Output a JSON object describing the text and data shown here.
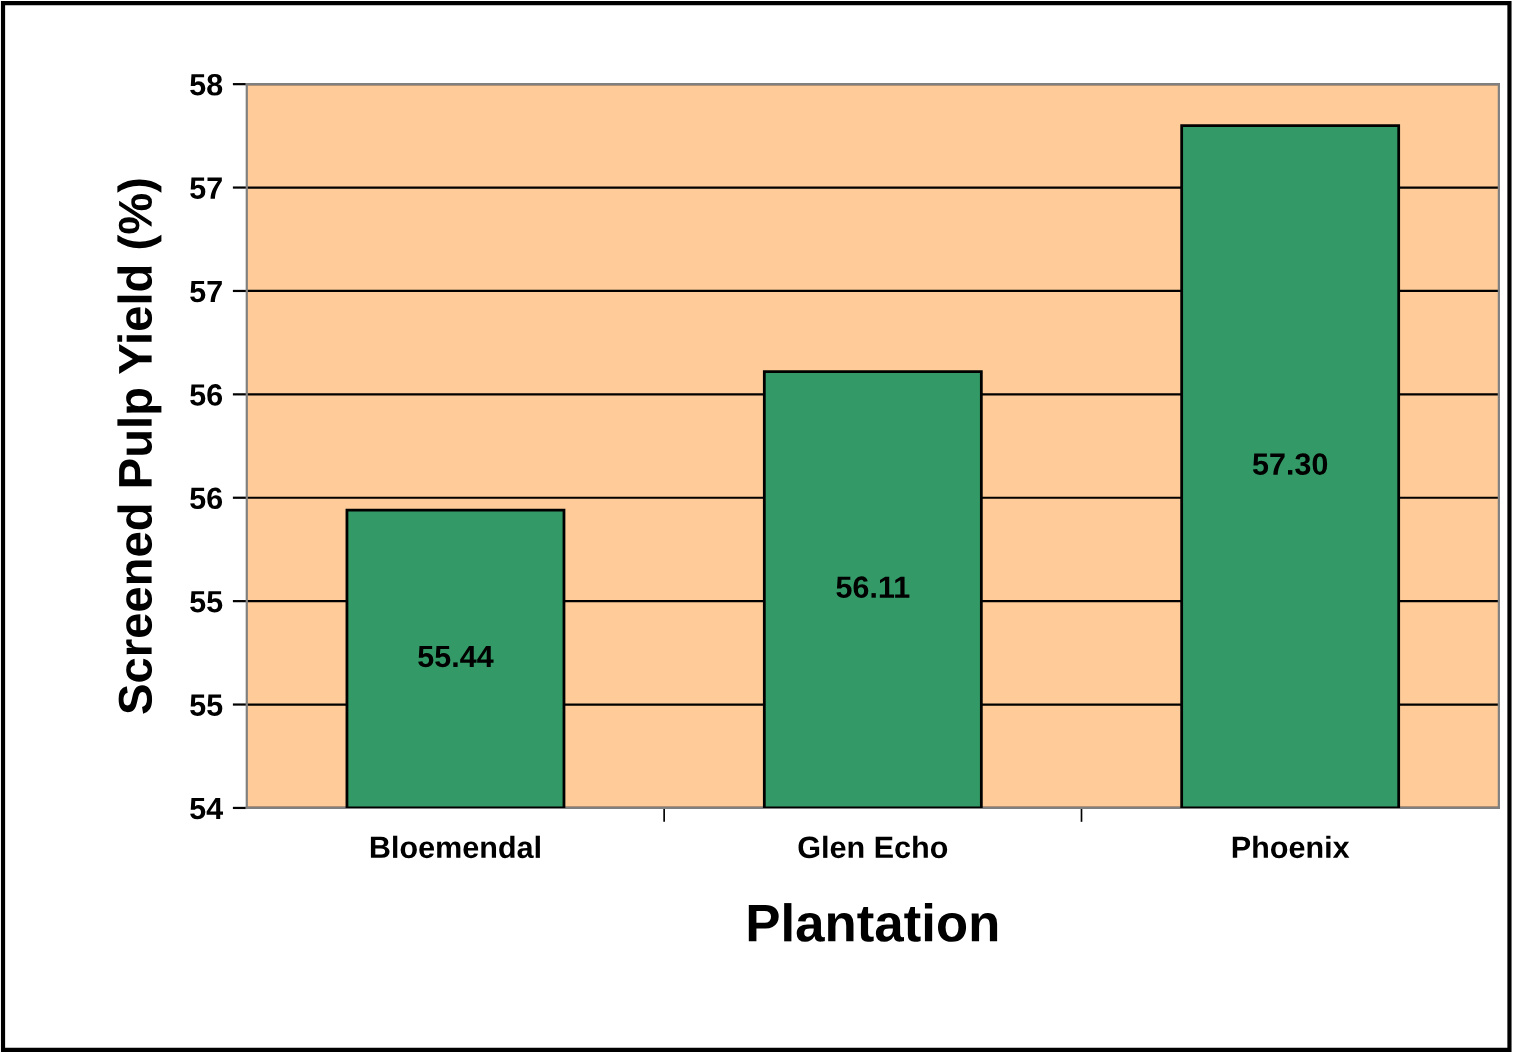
{
  "chart_data": {
    "type": "bar",
    "categories": [
      "Bloemendal",
      "Glen Echo",
      "Phoenix"
    ],
    "values": [
      55.44,
      56.11,
      57.3
    ],
    "value_labels": [
      "55.44",
      "56.11",
      "57.30"
    ],
    "color": "#339966",
    "xlabel": "Plantation",
    "ylabel": "Screened Pulp Yield (%)",
    "ylim": [
      54,
      57.5
    ],
    "yticks": [
      54,
      {
        "value": 54.5,
        "label": "55"
      },
      55,
      {
        "value": 55.5,
        "label": "56"
      },
      56,
      {
        "value": 56.5,
        "label": "57"
      },
      57,
      {
        "value": 57.5,
        "label": "58"
      }
    ],
    "grid": "y"
  }
}
